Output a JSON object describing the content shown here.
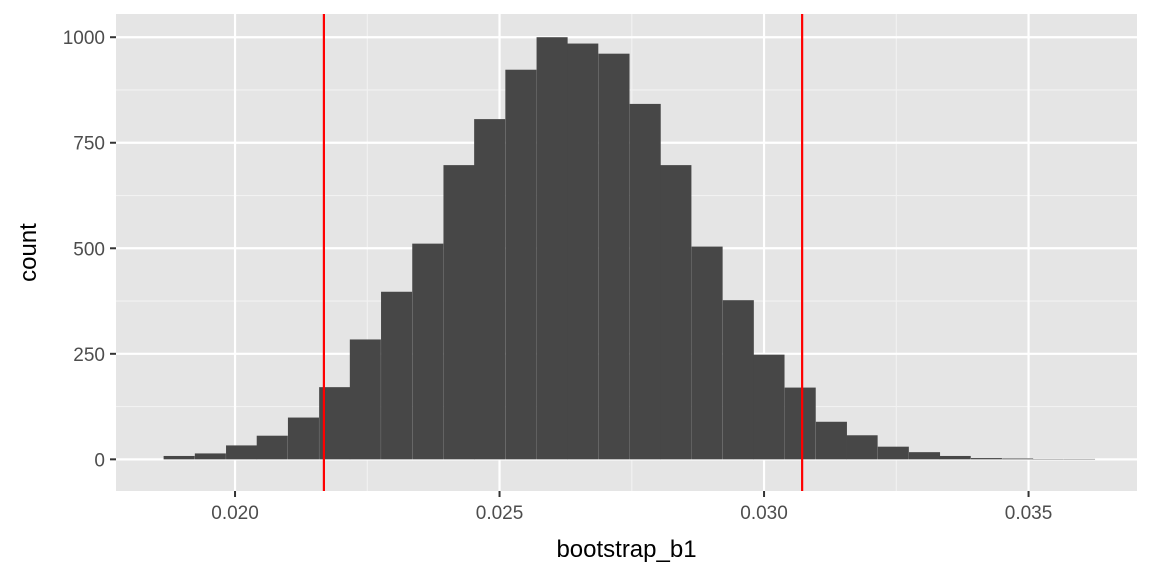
{
  "chart_data": {
    "type": "bar",
    "subtype": "histogram",
    "xlabel": "bootstrap_b1",
    "ylabel": "count",
    "xlim": [
      0.01775,
      0.03705
    ],
    "ylim": [
      -75,
      1055
    ],
    "x_ticks": [
      0.02,
      0.025,
      0.03,
      0.035
    ],
    "x_tick_labels": [
      "0.020",
      "0.025",
      "0.030",
      "0.035"
    ],
    "y_ticks": [
      0,
      250,
      500,
      750,
      1000
    ],
    "y_tick_labels": [
      "0",
      "250",
      "500",
      "750",
      "1000"
    ],
    "grid": true,
    "background": "#E5E5E5",
    "bar_color": "#474747",
    "bin_width": 0.000587,
    "bins": [
      {
        "x0": 0.01865,
        "count": 8
      },
      {
        "x0": 0.01924,
        "count": 14
      },
      {
        "x0": 0.01983,
        "count": 33
      },
      {
        "x0": 0.02041,
        "count": 56
      },
      {
        "x0": 0.021,
        "count": 99
      },
      {
        "x0": 0.02159,
        "count": 171
      },
      {
        "x0": 0.02217,
        "count": 284
      },
      {
        "x0": 0.02276,
        "count": 397
      },
      {
        "x0": 0.02335,
        "count": 511
      },
      {
        "x0": 0.02394,
        "count": 697
      },
      {
        "x0": 0.02452,
        "count": 806
      },
      {
        "x0": 0.02511,
        "count": 923
      },
      {
        "x0": 0.0257,
        "count": 1000
      },
      {
        "x0": 0.02628,
        "count": 985
      },
      {
        "x0": 0.02687,
        "count": 961
      },
      {
        "x0": 0.02746,
        "count": 842
      },
      {
        "x0": 0.02804,
        "count": 697
      },
      {
        "x0": 0.02863,
        "count": 504
      },
      {
        "x0": 0.02922,
        "count": 377
      },
      {
        "x0": 0.0298,
        "count": 248
      },
      {
        "x0": 0.03039,
        "count": 170
      },
      {
        "x0": 0.03098,
        "count": 89
      },
      {
        "x0": 0.03156,
        "count": 57
      },
      {
        "x0": 0.03215,
        "count": 30
      },
      {
        "x0": 0.03274,
        "count": 17
      },
      {
        "x0": 0.03332,
        "count": 8
      },
      {
        "x0": 0.03391,
        "count": 3
      },
      {
        "x0": 0.0345,
        "count": 2
      },
      {
        "x0": 0.03508,
        "count": 1
      },
      {
        "x0": 0.03567,
        "count": 1
      }
    ],
    "vlines": [
      {
        "x": 0.02168,
        "color": "#FF0000"
      },
      {
        "x": 0.03072,
        "color": "#FF0000"
      }
    ]
  }
}
